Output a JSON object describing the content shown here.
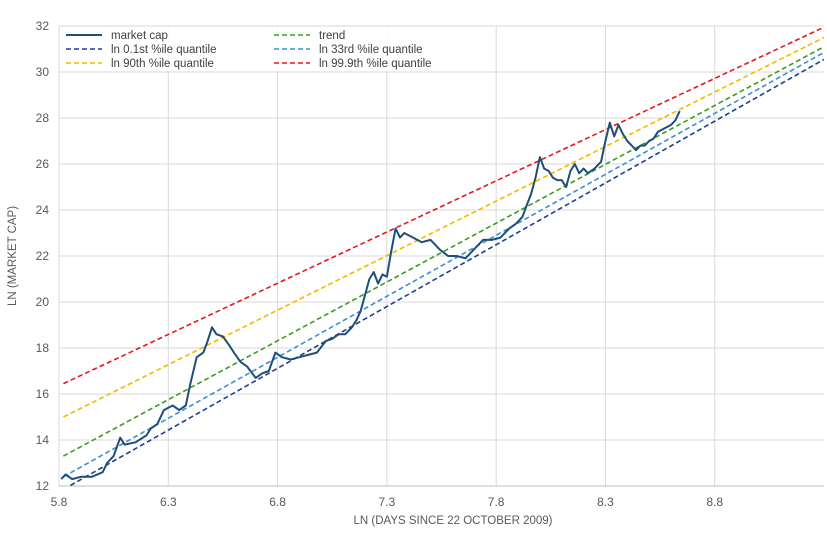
{
  "chart_data": {
    "type": "line",
    "xlabel": "LN (DAYS SINCE 22 OCTOBER 2009)",
    "ylabel": "LN (MARKET CAP)",
    "xlim": [
      5.8,
      9.3
    ],
    "ylim": [
      12,
      32
    ],
    "x_ticks": [
      5.8,
      6.3,
      6.8,
      7.3,
      7.8,
      8.3,
      8.8
    ],
    "x_tick_labels": [
      "5.8",
      "6.3",
      "6.8",
      "7.3",
      "7.8",
      "8.3",
      "8.8"
    ],
    "y_ticks": [
      12,
      14,
      16,
      18,
      20,
      22,
      24,
      26,
      28,
      30,
      32
    ],
    "y_tick_labels": [
      "12",
      "14",
      "16",
      "18",
      "20",
      "22",
      "24",
      "26",
      "28",
      "30",
      "32"
    ],
    "grid": "vertical and horizontal major gridlines",
    "legend_position": "top-left",
    "series": [
      {
        "name": "market cap",
        "style": "solid",
        "color": "#1f4e79",
        "x": [
          5.81,
          5.83,
          5.86,
          5.9,
          5.95,
          6.0,
          6.02,
          6.05,
          6.08,
          6.1,
          6.15,
          6.2,
          6.22,
          6.25,
          6.28,
          6.3,
          6.32,
          6.35,
          6.38,
          6.4,
          6.43,
          6.46,
          6.48,
          6.5,
          6.52,
          6.55,
          6.58,
          6.6,
          6.63,
          6.66,
          6.7,
          6.73,
          6.76,
          6.79,
          6.82,
          6.86,
          6.9,
          6.94,
          6.98,
          7.02,
          7.05,
          7.08,
          7.11,
          7.14,
          7.16,
          7.18,
          7.2,
          7.22,
          7.24,
          7.26,
          7.28,
          7.3,
          7.32,
          7.34,
          7.36,
          7.38,
          7.42,
          7.46,
          7.5,
          7.54,
          7.58,
          7.62,
          7.66,
          7.7,
          7.74,
          7.78,
          7.82,
          7.86,
          7.89,
          7.92,
          7.94,
          7.96,
          7.98,
          8.0,
          8.02,
          8.04,
          8.06,
          8.08,
          8.1,
          8.12,
          8.14,
          8.16,
          8.18,
          8.2,
          8.22,
          8.25,
          8.28,
          8.3,
          8.32,
          8.34,
          8.36,
          8.38,
          8.4,
          8.42,
          8.44,
          8.46,
          8.48,
          8.5,
          8.52,
          8.54,
          8.56,
          8.58,
          8.6,
          8.62,
          8.64
        ],
        "y": [
          12.3,
          12.5,
          12.3,
          12.4,
          12.4,
          12.6,
          13.0,
          13.3,
          14.1,
          13.8,
          13.9,
          14.2,
          14.5,
          14.7,
          15.3,
          15.4,
          15.5,
          15.3,
          15.5,
          16.4,
          17.6,
          17.8,
          18.3,
          18.9,
          18.6,
          18.5,
          18.1,
          17.8,
          17.4,
          17.2,
          16.7,
          16.9,
          17.0,
          17.8,
          17.6,
          17.5,
          17.6,
          17.7,
          17.8,
          18.3,
          18.4,
          18.6,
          18.6,
          18.9,
          19.2,
          19.6,
          20.3,
          21.0,
          21.3,
          20.8,
          21.2,
          21.1,
          22.2,
          23.2,
          22.8,
          23.0,
          22.8,
          22.6,
          22.7,
          22.3,
          22.0,
          22.0,
          21.9,
          22.3,
          22.7,
          22.7,
          22.8,
          23.2,
          23.4,
          23.7,
          24.2,
          24.7,
          25.4,
          26.3,
          25.8,
          25.7,
          25.4,
          25.3,
          25.3,
          25.0,
          25.7,
          26.0,
          25.6,
          25.8,
          25.6,
          25.8,
          26.1,
          27.0,
          27.8,
          27.2,
          27.7,
          27.3,
          27.0,
          26.8,
          26.6,
          26.8,
          26.8,
          27.0,
          27.1,
          27.4,
          27.5,
          27.6,
          27.7,
          27.9,
          28.3
        ]
      },
      {
        "name": "trend",
        "style": "dashed",
        "color": "#3a9b20",
        "x": [
          5.82,
          9.3
        ],
        "y": [
          13.3,
          31.1
        ]
      },
      {
        "name": "ln 0.1st %ile quantile",
        "style": "dashed",
        "color": "#1f3f8f",
        "x": [
          5.82,
          9.3
        ],
        "y": [
          11.85,
          30.55
        ]
      },
      {
        "name": "ln 33rd %ile quantile",
        "style": "dashed",
        "color": "#3d8fd1",
        "x": [
          5.82,
          9.3
        ],
        "y": [
          12.4,
          30.85
        ]
      },
      {
        "name": "ln 90th %ile quantile",
        "style": "dashed",
        "color": "#f2b900",
        "x": [
          5.82,
          9.3
        ],
        "y": [
          15.0,
          31.5
        ]
      },
      {
        "name": "ln 99.9th %ile quantile",
        "style": "dashed",
        "color": "#e3191c",
        "x": [
          5.82,
          9.3
        ],
        "y": [
          16.45,
          31.95
        ]
      }
    ],
    "legend": [
      {
        "series": 0,
        "label": "market cap"
      },
      {
        "series": 1,
        "label": "trend"
      },
      {
        "series": 2,
        "label": "ln 0.1st %ile quantile"
      },
      {
        "series": 3,
        "label": "ln 33rd %ile quantile"
      },
      {
        "series": 4,
        "label": "ln 90th %ile quantile"
      },
      {
        "series": 5,
        "label": "ln 99.9th %ile quantile"
      }
    ]
  }
}
